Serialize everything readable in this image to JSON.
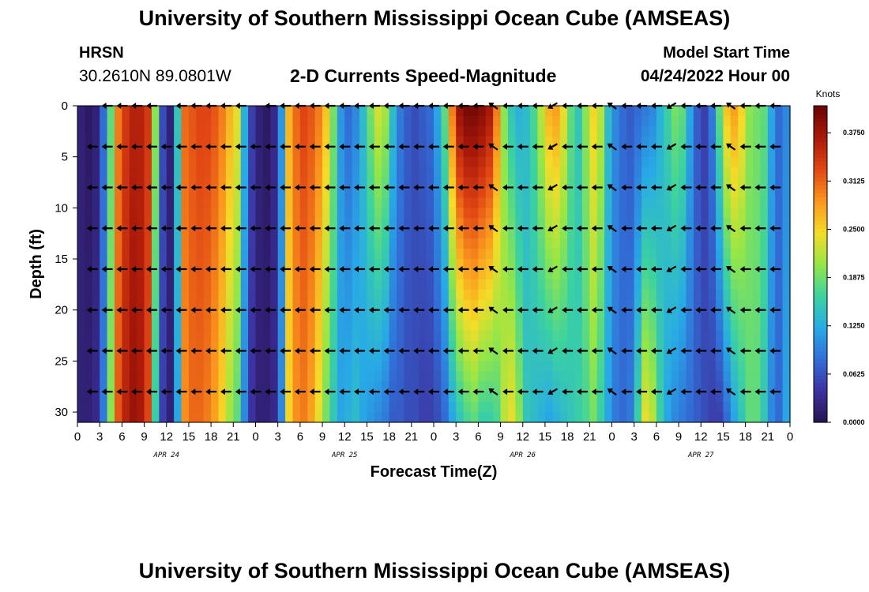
{
  "header": {
    "title": "University of Southern Mississippi Ocean Cube (AMSEAS)",
    "station": "HRSN",
    "coordinates": "30.2610N  89.0801W",
    "subtitle": "2-D Currents Speed-Magnitude",
    "model_start_label": "Model Start Time",
    "model_start_value": "04/24/2022 Hour 00"
  },
  "footer": {
    "title": "University of Southern Mississippi Ocean Cube (AMSEAS)"
  },
  "chart_data": {
    "type": "heatmap",
    "title": "2-D Currents Speed-Magnitude",
    "xlabel": "Forecast Time(Z)",
    "ylabel": "Depth (ft)",
    "x_tick_labels": [
      "0",
      "3",
      "6",
      "9",
      "12",
      "15",
      "18",
      "21",
      "0",
      "3",
      "6",
      "9",
      "12",
      "15",
      "18",
      "21",
      "0",
      "3",
      "6",
      "9",
      "12",
      "15",
      "18",
      "21",
      "0",
      "3",
      "6",
      "9",
      "12",
      "15",
      "18",
      "21",
      "0"
    ],
    "day_labels": [
      "APR 24",
      "APR 25",
      "APR 26",
      "APR 27"
    ],
    "x_range_hours": [
      0,
      96
    ],
    "y_ticks": [
      0,
      5,
      10,
      15,
      20,
      25,
      30
    ],
    "y_range_ft": [
      0,
      31
    ],
    "colorbar": {
      "title": "Knots",
      "ticks": [
        "0.0000",
        "0.0625",
        "0.1250",
        "0.1875",
        "0.2500",
        "0.3125",
        "0.3750"
      ],
      "range": [
        0,
        0.41
      ]
    },
    "arrow_depths_ft": [
      0,
      4,
      8,
      12,
      16,
      20,
      24,
      28
    ],
    "speed_profile": [
      {
        "hour": 0,
        "top": 0.02,
        "bottom": 0.02
      },
      {
        "hour": 1,
        "top": 0.01,
        "bottom": 0.02
      },
      {
        "hour": 2,
        "top": 0.02,
        "bottom": 0.03
      },
      {
        "hour": 3,
        "top": 0.08,
        "bottom": 0.09
      },
      {
        "hour": 4,
        "top": 0.18,
        "bottom": 0.2
      },
      {
        "hour": 5,
        "top": 0.3,
        "bottom": 0.32
      },
      {
        "hour": 6,
        "top": 0.34,
        "bottom": 0.36
      },
      {
        "hour": 7,
        "top": 0.36,
        "bottom": 0.38
      },
      {
        "hour": 8,
        "top": 0.36,
        "bottom": 0.37
      },
      {
        "hour": 9,
        "top": 0.34,
        "bottom": 0.33
      },
      {
        "hour": 10,
        "top": 0.2,
        "bottom": 0.16
      },
      {
        "hour": 11,
        "top": 0.06,
        "bottom": 0.05
      },
      {
        "hour": 12,
        "top": 0.02,
        "bottom": 0.02
      },
      {
        "hour": 13,
        "top": 0.15,
        "bottom": 0.12
      },
      {
        "hour": 14,
        "top": 0.31,
        "bottom": 0.29
      },
      {
        "hour": 15,
        "top": 0.32,
        "bottom": 0.31
      },
      {
        "hour": 16,
        "top": 0.33,
        "bottom": 0.31
      },
      {
        "hour": 17,
        "top": 0.33,
        "bottom": 0.3
      },
      {
        "hour": 18,
        "top": 0.32,
        "bottom": 0.28
      },
      {
        "hour": 19,
        "top": 0.3,
        "bottom": 0.25
      },
      {
        "hour": 20,
        "top": 0.27,
        "bottom": 0.21
      },
      {
        "hour": 21,
        "top": 0.24,
        "bottom": 0.18
      },
      {
        "hour": 22,
        "top": 0.13,
        "bottom": 0.1
      },
      {
        "hour": 23,
        "top": 0.05,
        "bottom": 0.04
      },
      {
        "hour": 24,
        "top": 0.02,
        "bottom": 0.02
      },
      {
        "hour": 25,
        "top": 0.01,
        "bottom": 0.02
      },
      {
        "hour": 26,
        "top": 0.03,
        "bottom": 0.03
      },
      {
        "hour": 27,
        "top": 0.11,
        "bottom": 0.1
      },
      {
        "hour": 28,
        "top": 0.27,
        "bottom": 0.25
      },
      {
        "hour": 29,
        "top": 0.31,
        "bottom": 0.29
      },
      {
        "hour": 30,
        "top": 0.33,
        "bottom": 0.3
      },
      {
        "hour": 31,
        "top": 0.32,
        "bottom": 0.28
      },
      {
        "hour": 32,
        "top": 0.3,
        "bottom": 0.24
      },
      {
        "hour": 33,
        "top": 0.26,
        "bottom": 0.19
      },
      {
        "hour": 34,
        "top": 0.19,
        "bottom": 0.15
      },
      {
        "hour": 35,
        "top": 0.11,
        "bottom": 0.12
      },
      {
        "hour": 36,
        "top": 0.08,
        "bottom": 0.13
      },
      {
        "hour": 37,
        "top": 0.1,
        "bottom": 0.14
      },
      {
        "hour": 38,
        "top": 0.14,
        "bottom": 0.12
      },
      {
        "hour": 39,
        "top": 0.19,
        "bottom": 0.11
      },
      {
        "hour": 40,
        "top": 0.23,
        "bottom": 0.1
      },
      {
        "hour": 41,
        "top": 0.21,
        "bottom": 0.09
      },
      {
        "hour": 42,
        "top": 0.14,
        "bottom": 0.07
      },
      {
        "hour": 43,
        "top": 0.09,
        "bottom": 0.07
      },
      {
        "hour": 44,
        "top": 0.07,
        "bottom": 0.06
      },
      {
        "hour": 45,
        "top": 0.06,
        "bottom": 0.06
      },
      {
        "hour": 46,
        "top": 0.07,
        "bottom": 0.05
      },
      {
        "hour": 47,
        "top": 0.08,
        "bottom": 0.05
      },
      {
        "hour": 48,
        "top": 0.12,
        "bottom": 0.06
      },
      {
        "hour": 49,
        "top": 0.18,
        "bottom": 0.08
      },
      {
        "hour": 50,
        "top": 0.3,
        "bottom": 0.12
      },
      {
        "hour": 51,
        "top": 0.38,
        "bottom": 0.15
      },
      {
        "hour": 52,
        "top": 0.4,
        "bottom": 0.17
      },
      {
        "hour": 53,
        "top": 0.4,
        "bottom": 0.18
      },
      {
        "hour": 54,
        "top": 0.39,
        "bottom": 0.16
      },
      {
        "hour": 55,
        "top": 0.37,
        "bottom": 0.16
      },
      {
        "hour": 56,
        "top": 0.3,
        "bottom": 0.17
      },
      {
        "hour": 57,
        "top": 0.2,
        "bottom": 0.22
      },
      {
        "hour": 58,
        "top": 0.15,
        "bottom": 0.24
      },
      {
        "hour": 59,
        "top": 0.13,
        "bottom": 0.2
      },
      {
        "hour": 60,
        "top": 0.14,
        "bottom": 0.15
      },
      {
        "hour": 61,
        "top": 0.17,
        "bottom": 0.14
      },
      {
        "hour": 62,
        "top": 0.22,
        "bottom": 0.13
      },
      {
        "hour": 63,
        "top": 0.27,
        "bottom": 0.12
      },
      {
        "hour": 64,
        "top": 0.28,
        "bottom": 0.13
      },
      {
        "hour": 65,
        "top": 0.24,
        "bottom": 0.14
      },
      {
        "hour": 66,
        "top": 0.18,
        "bottom": 0.15
      },
      {
        "hour": 67,
        "top": 0.15,
        "bottom": 0.16
      },
      {
        "hour": 68,
        "top": 0.2,
        "bottom": 0.17
      },
      {
        "hour": 69,
        "top": 0.25,
        "bottom": 0.19
      },
      {
        "hour": 70,
        "top": 0.22,
        "bottom": 0.16
      },
      {
        "hour": 71,
        "top": 0.14,
        "bottom": 0.12
      },
      {
        "hour": 72,
        "top": 0.1,
        "bottom": 0.09
      },
      {
        "hour": 73,
        "top": 0.08,
        "bottom": 0.08
      },
      {
        "hour": 74,
        "top": 0.07,
        "bottom": 0.09
      },
      {
        "hour": 75,
        "top": 0.08,
        "bottom": 0.16
      },
      {
        "hour": 76,
        "top": 0.09,
        "bottom": 0.24
      },
      {
        "hour": 77,
        "top": 0.1,
        "bottom": 0.22
      },
      {
        "hour": 78,
        "top": 0.13,
        "bottom": 0.16
      },
      {
        "hour": 79,
        "top": 0.16,
        "bottom": 0.12
      },
      {
        "hour": 80,
        "top": 0.19,
        "bottom": 0.1
      },
      {
        "hour": 81,
        "top": 0.18,
        "bottom": 0.09
      },
      {
        "hour": 82,
        "top": 0.12,
        "bottom": 0.08
      },
      {
        "hour": 83,
        "top": 0.07,
        "bottom": 0.07
      },
      {
        "hour": 84,
        "top": 0.05,
        "bottom": 0.06
      },
      {
        "hour": 85,
        "top": 0.09,
        "bottom": 0.05
      },
      {
        "hour": 86,
        "top": 0.18,
        "bottom": 0.05
      },
      {
        "hour": 87,
        "top": 0.26,
        "bottom": 0.08
      },
      {
        "hour": 88,
        "top": 0.28,
        "bottom": 0.12
      },
      {
        "hour": 89,
        "top": 0.25,
        "bottom": 0.15
      },
      {
        "hour": 90,
        "top": 0.2,
        "bottom": 0.18
      },
      {
        "hour": 91,
        "top": 0.19,
        "bottom": 0.18
      },
      {
        "hour": 92,
        "top": 0.18,
        "bottom": 0.15
      },
      {
        "hour": 93,
        "top": 0.12,
        "bottom": 0.1
      },
      {
        "hour": 94,
        "top": 0.08,
        "bottom": 0.08
      },
      {
        "hour": 95,
        "top": 0.1,
        "bottom": 0.12
      },
      {
        "hour": 96,
        "top": 0.15,
        "bottom": 0.2
      }
    ]
  }
}
